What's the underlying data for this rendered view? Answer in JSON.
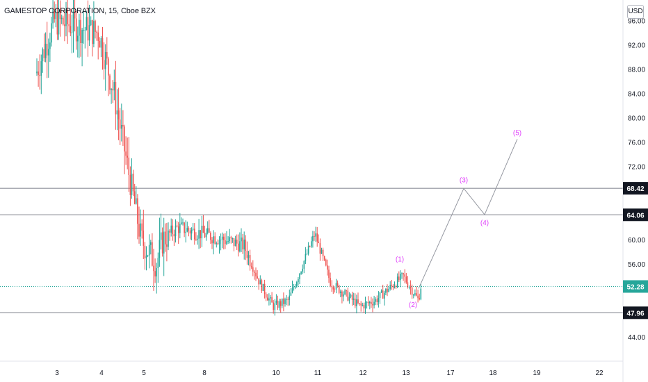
{
  "header": {
    "symbol_title": "GAMESTOP CORPORATION, 15, Cboe BZX",
    "currency": "USD"
  },
  "colors": {
    "up": "#26a69a",
    "down": "#ef5350",
    "wave_label": "#e040fb",
    "wave_line": "#9598a1",
    "level_line": "#787b86",
    "last_price": "#26a69a",
    "axis_text": "#131722",
    "level_tag_bg": "#131722"
  },
  "chart_data": {
    "type": "candlestick",
    "y_axis": {
      "range": [
        40,
        98
      ],
      "ticks": [
        "44.00",
        "48.00",
        "52.00",
        "56.00",
        "60.00",
        "64.00",
        "68.00",
        "72.00",
        "76.00",
        "80.00",
        "84.00",
        "88.00",
        "92.00",
        "96.00"
      ],
      "position": "right"
    },
    "x_axis": {
      "ticks": [
        "3",
        "4",
        "5",
        "8",
        "10",
        "11",
        "12",
        "13",
        "17",
        "18",
        "19",
        "22"
      ]
    },
    "horizontal_levels": [
      68.42,
      64.06,
      47.96
    ],
    "level_labels": [
      "68.42",
      "64.06",
      "47.96"
    ],
    "last_price": 52.28,
    "last_price_label": "52.28",
    "price_path": [
      {
        "date": "2-Aug",
        "close": 86
      },
      {
        "date": "3-Aug",
        "close": 96
      },
      {
        "date": "4-Aug",
        "close": 94
      },
      {
        "date": "4-Aug",
        "close": 84
      },
      {
        "date": "5-Aug",
        "close": 60
      },
      {
        "date": "5-Aug",
        "close": 56
      },
      {
        "date": "6-Aug",
        "close": 60
      },
      {
        "date": "6-Aug",
        "close": 62
      },
      {
        "date": "8-Aug",
        "close": 61
      },
      {
        "date": "9-Aug",
        "close": 59
      },
      {
        "date": "9-Aug",
        "close": 53
      },
      {
        "date": "10-Aug",
        "close": 49
      },
      {
        "date": "10-Aug",
        "close": 50
      },
      {
        "date": "11-Aug",
        "close": 61
      },
      {
        "date": "11-Aug",
        "close": 53
      },
      {
        "date": "12-Aug",
        "close": 49
      },
      {
        "date": "12-Aug",
        "close": 50
      },
      {
        "date": "13-Aug",
        "close": 54
      },
      {
        "date": "13-Aug",
        "close": 50
      },
      {
        "date": "13-Aug",
        "close": 52.3
      }
    ],
    "elliott_wave": {
      "points": [
        {
          "label": "(1)",
          "date": "13-Aug",
          "price": 55.5
        },
        {
          "label": "(2)",
          "date": "13-Aug",
          "price": 50.5
        },
        {
          "label": "(3)",
          "date": "17-Aug",
          "price": 68.4
        },
        {
          "label": "(4)",
          "date": "18-Aug",
          "price": 64.1
        },
        {
          "label": "(5)",
          "date": "18-Aug",
          "price": 76.5
        }
      ]
    }
  }
}
